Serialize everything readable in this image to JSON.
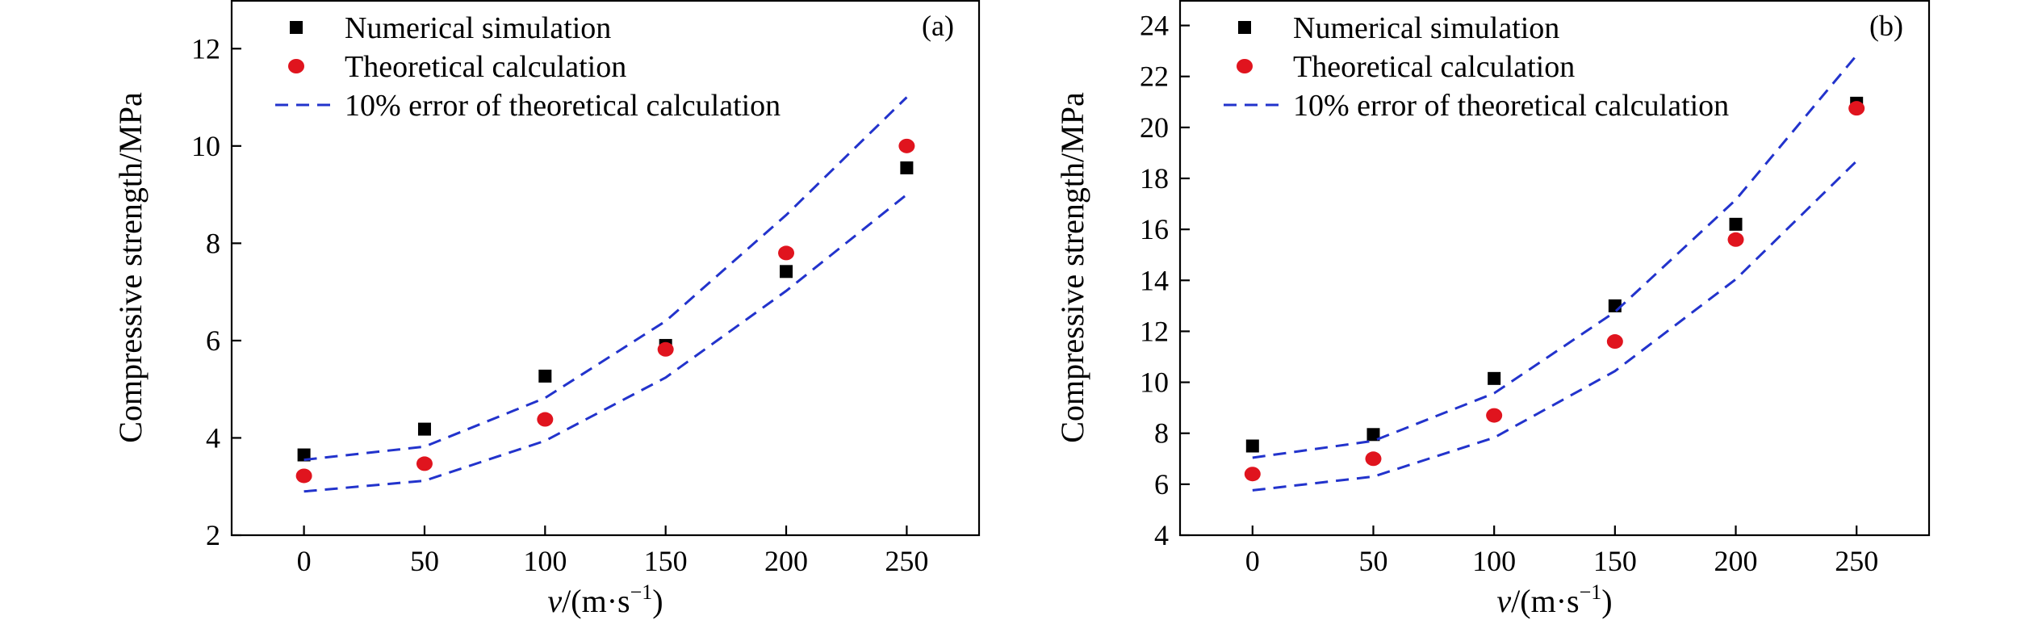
{
  "chart_data": [
    {
      "type": "scatter",
      "panel_label": "(a)",
      "xlabel_italic": "v",
      "xlabel_unit": "/(m·s",
      "xlabel_exp": "−1",
      "xlabel_close": ")",
      "ylabel": "Compressive strength/MPa",
      "xlim": [
        -30,
        280
      ],
      "ylim": [
        2,
        13
      ],
      "xticks": [
        0,
        50,
        100,
        150,
        200,
        250
      ],
      "yticks": [
        2,
        4,
        6,
        8,
        10,
        12
      ],
      "legend_position": "top-left",
      "series": [
        {
          "name": "Numerical simulation",
          "marker": "square",
          "color": "#000000",
          "x": [
            0,
            50,
            100,
            150,
            200,
            250
          ],
          "y": [
            3.65,
            4.18,
            5.27,
            5.9,
            7.42,
            9.55
          ]
        },
        {
          "name": "Theoretical calculation",
          "marker": "circle",
          "color": "#e0141e",
          "x": [
            0,
            50,
            100,
            150,
            200,
            250
          ],
          "y": [
            3.22,
            3.47,
            4.38,
            5.82,
            7.8,
            10.0
          ]
        },
        {
          "name": "10% error of theoretical calculation",
          "marker": "dash",
          "color": "#2233cc",
          "x": [
            0,
            50,
            100,
            150,
            200,
            250
          ],
          "y": [
            3.55,
            3.82,
            4.82,
            6.4,
            8.58,
            11.0
          ]
        },
        {
          "name": "",
          "marker": "dash",
          "color": "#2233cc",
          "in_legend": false,
          "x": [
            0,
            50,
            100,
            150,
            200,
            250
          ],
          "y": [
            2.9,
            3.12,
            3.94,
            5.24,
            7.02,
            9.0
          ]
        }
      ]
    },
    {
      "type": "scatter",
      "panel_label": "(b)",
      "xlabel_italic": "v",
      "xlabel_unit": "/(m·s",
      "xlabel_exp": "−1",
      "xlabel_close": ")",
      "ylabel": "Compressive strength/MPa",
      "xlim": [
        -30,
        280
      ],
      "ylim": [
        4,
        25
      ],
      "xticks": [
        0,
        50,
        100,
        150,
        200,
        250
      ],
      "yticks": [
        4,
        6,
        8,
        10,
        12,
        14,
        16,
        18,
        20,
        22,
        24
      ],
      "legend_position": "top-left",
      "series": [
        {
          "name": "Numerical simulation",
          "marker": "square",
          "color": "#000000",
          "x": [
            0,
            50,
            100,
            150,
            200,
            250
          ],
          "y": [
            7.5,
            7.95,
            10.15,
            13.0,
            16.2,
            20.95
          ]
        },
        {
          "name": "Theoretical calculation",
          "marker": "circle",
          "color": "#e0141e",
          "x": [
            0,
            50,
            100,
            150,
            200,
            250
          ],
          "y": [
            6.4,
            7.0,
            8.7,
            11.6,
            15.6,
            20.75
          ]
        },
        {
          "name": "10% error of theoretical calculation",
          "marker": "dash",
          "color": "#2233cc",
          "x": [
            0,
            50,
            100,
            150,
            200,
            250
          ],
          "y": [
            7.04,
            7.7,
            9.57,
            12.76,
            17.16,
            22.83
          ]
        },
        {
          "name": "",
          "marker": "dash",
          "color": "#2233cc",
          "in_legend": false,
          "x": [
            0,
            50,
            100,
            150,
            200,
            250
          ],
          "y": [
            5.76,
            6.3,
            7.83,
            10.44,
            14.04,
            18.68
          ]
        }
      ]
    }
  ]
}
